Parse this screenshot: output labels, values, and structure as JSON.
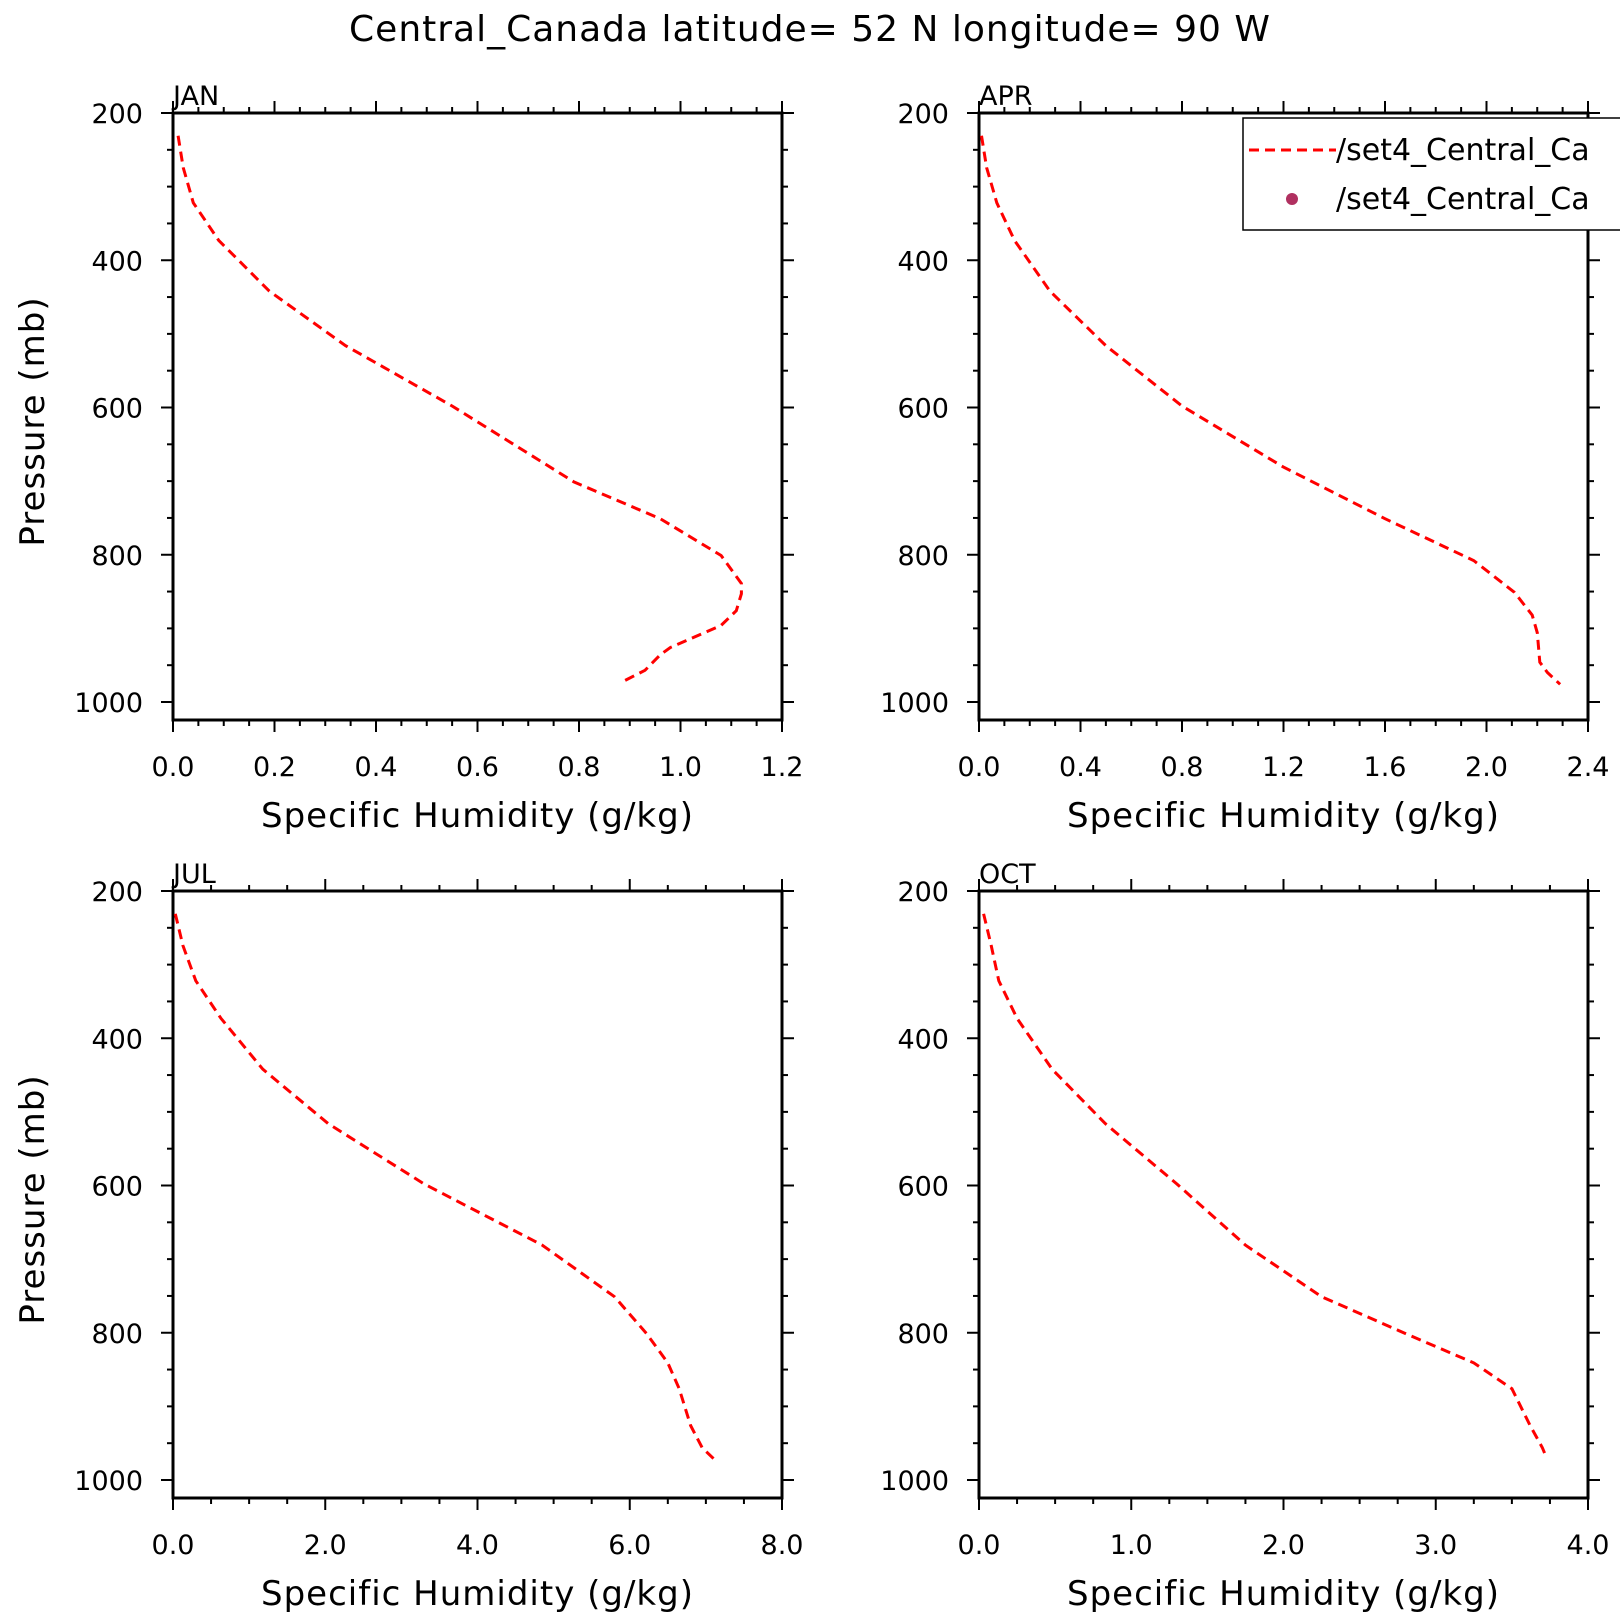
{
  "title": "Central_Canada  latitude= 52 N longitude= 90 W",
  "legend": {
    "entries": [
      {
        "label": "/set4_Central_Ca",
        "style": "dashed-line",
        "color": "#ff0000"
      },
      {
        "label": "/set4_Central_Ca",
        "style": "marker",
        "color": "#b03060"
      }
    ]
  },
  "chart_data": [
    {
      "type": "line",
      "title": "JAN",
      "xlabel": "Specific Humidity (g/kg)",
      "ylabel": "Pressure (mb)",
      "xlim": [
        0,
        1.2
      ],
      "ylim": [
        200,
        1000
      ],
      "y_inverted": true,
      "xticks": [
        "0.0",
        "0.2",
        "0.4",
        "0.6",
        "0.8",
        "1.0",
        "1.2"
      ],
      "yticks": [
        "200",
        "400",
        "600",
        "800",
        "1000"
      ],
      "series": [
        {
          "color": "#ff0000",
          "x": [
            0.01,
            0.02,
            0.04,
            0.09,
            0.19,
            0.34,
            0.55,
            0.79,
            0.96,
            1.08,
            1.12,
            1.12,
            1.11,
            1.08,
            0.98,
            0.96,
            0.93,
            0.89
          ],
          "y": [
            231,
            274,
            322,
            373,
            442,
            516,
            598,
            701,
            751,
            801,
            839,
            853,
            876,
            896,
            926,
            936,
            957,
            971
          ]
        }
      ]
    },
    {
      "type": "line",
      "title": "APR",
      "xlabel": "Specific Humidity (g/kg)",
      "ylabel": "Pressure (mb)",
      "xlim": [
        0,
        2.4
      ],
      "ylim": [
        200,
        1000
      ],
      "y_inverted": true,
      "xticks": [
        "0.0",
        "0.4",
        "0.8",
        "1.2",
        "1.6",
        "2.0",
        "2.4"
      ],
      "yticks": [
        "200",
        "400",
        "600",
        "800",
        "1000"
      ],
      "series": [
        {
          "color": "#ff0000",
          "x": [
            0.01,
            0.03,
            0.07,
            0.14,
            0.28,
            0.5,
            0.8,
            1.2,
            1.6,
            1.95,
            2.11,
            2.18,
            2.2,
            2.21,
            2.24,
            2.29
          ],
          "y": [
            231,
            274,
            322,
            373,
            442,
            516,
            598,
            681,
            751,
            808,
            851,
            882,
            906,
            946,
            960,
            976
          ]
        }
      ]
    },
    {
      "type": "line",
      "title": "JUL",
      "xlabel": "Specific Humidity (g/kg)",
      "ylabel": "Pressure (mb)",
      "xlim": [
        0,
        8
      ],
      "ylim": [
        200,
        1000
      ],
      "y_inverted": true,
      "xticks": [
        "0.0",
        "2.0",
        "4.0",
        "6.0",
        "8.0"
      ],
      "yticks": [
        "200",
        "400",
        "600",
        "800",
        "1000"
      ],
      "series": [
        {
          "color": "#ff0000",
          "x": [
            0.03,
            0.13,
            0.3,
            0.63,
            1.18,
            2.04,
            3.3,
            4.85,
            5.8,
            6.22,
            6.5,
            6.65,
            6.8,
            6.95,
            7.1
          ],
          "y": [
            231,
            274,
            322,
            373,
            442,
            516,
            598,
            681,
            751,
            801,
            841,
            876,
            926,
            956,
            971
          ]
        }
      ]
    },
    {
      "type": "line",
      "title": "OCT",
      "xlabel": "Specific Humidity (g/kg)",
      "ylabel": "Pressure (mb)",
      "xlim": [
        0,
        4
      ],
      "ylim": [
        200,
        1000
      ],
      "y_inverted": true,
      "xticks": [
        "0.0",
        "1.0",
        "2.0",
        "3.0",
        "4.0"
      ],
      "yticks": [
        "200",
        "400",
        "600",
        "800",
        "1000"
      ],
      "series": [
        {
          "color": "#ff0000",
          "x": [
            0.03,
            0.08,
            0.13,
            0.25,
            0.48,
            0.83,
            1.3,
            1.75,
            2.25,
            2.8,
            3.25,
            3.5,
            3.62,
            3.7,
            3.73
          ],
          "y": [
            231,
            274,
            322,
            373,
            442,
            516,
            598,
            681,
            751,
            801,
            841,
            876,
            926,
            956,
            971
          ]
        }
      ]
    }
  ]
}
